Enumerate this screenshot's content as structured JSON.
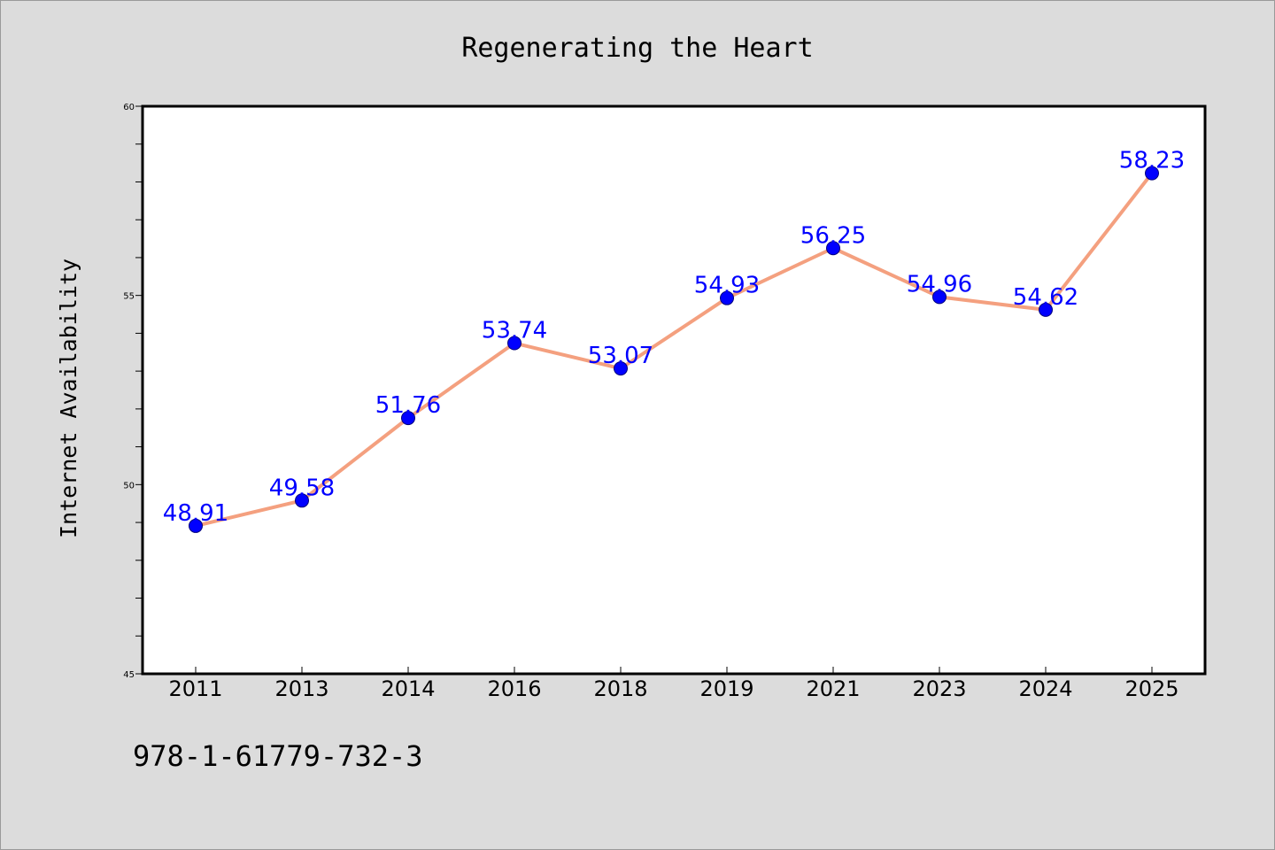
{
  "chart_data": {
    "type": "line",
    "title": "Regenerating the Heart",
    "xlabel": "",
    "ylabel": "Internet Availability",
    "categories": [
      "2011",
      "2013",
      "2014",
      "2016",
      "2018",
      "2019",
      "2021",
      "2023",
      "2024",
      "2025"
    ],
    "series": [
      {
        "values": [
          48.91,
          49.58,
          51.76,
          53.74,
          53.07,
          54.93,
          56.25,
          54.96,
          54.62,
          58.23
        ]
      }
    ],
    "data_labels": [
      "48.91",
      "49.58",
      "51.76",
      "53.74",
      "53.07",
      "54.93",
      "56.25",
      "54.96",
      "54.62",
      "58.23"
    ],
    "ylim": [
      45,
      60
    ],
    "yticks": [
      "45",
      "50",
      "55",
      "60"
    ],
    "ytick_values": [
      45,
      50,
      55,
      60
    ],
    "y_minor_step": 1,
    "grid": false,
    "colors": {
      "line": "#f4a07f",
      "marker": "#0000ff",
      "marker_edge": "#00007a",
      "label": "#0000ff",
      "background": "#dcdcdc",
      "plot_background": "#ffffff"
    }
  },
  "footer": {
    "isbn": "978-1-61779-732-3"
  }
}
